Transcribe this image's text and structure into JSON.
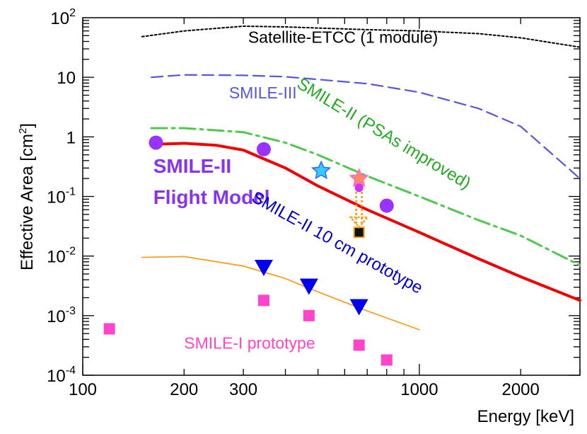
{
  "chart_data": {
    "type": "line",
    "title": "",
    "xlabel": "Energy [keV]",
    "ylabel_prefix": "Effective Area [cm",
    "ylabel_sup": "2",
    "ylabel_suffix": "]",
    "x_scale": "log",
    "y_scale": "log",
    "xlim": [
      100,
      3000
    ],
    "ylim": [
      0.0001,
      100
    ],
    "x_tick_labels": [
      {
        "value": 100,
        "label": "100"
      },
      {
        "value": 200,
        "label": "200"
      },
      {
        "value": 300,
        "label": "300"
      },
      {
        "value": 1000,
        "label": "1000"
      },
      {
        "value": 2000,
        "label": "2000"
      }
    ],
    "y_tick_labels": [
      {
        "value": 100,
        "base": "10",
        "sup": "2"
      },
      {
        "value": 10,
        "base": "10",
        "sup": ""
      },
      {
        "value": 1,
        "base": "1",
        "sup": ""
      },
      {
        "value": 0.1,
        "base": "10",
        "sup": "-1"
      },
      {
        "value": 0.01,
        "base": "10",
        "sup": "-2"
      },
      {
        "value": 0.001,
        "base": "10",
        "sup": "-3"
      },
      {
        "value": 0.0001,
        "base": "10",
        "sup": "-4"
      }
    ],
    "series": [
      {
        "name": "Satellite-ETCC (1 module)",
        "style": "dotted",
        "color": "#000000",
        "x": [
          150,
          200,
          300,
          400,
          500,
          700,
          1000,
          1500,
          2000,
          3000
        ],
        "y": [
          48,
          60,
          72,
          70,
          67,
          63,
          60,
          54,
          46,
          32
        ]
      },
      {
        "name": "SMILE-III",
        "style": "dashed",
        "color": "#5555dd",
        "x": [
          160,
          200,
          300,
          400,
          500,
          700,
          1000,
          1500,
          2000,
          3000
        ],
        "y": [
          10,
          11,
          10.8,
          10.2,
          9.2,
          7.8,
          5.6,
          3.0,
          1.5,
          0.2
        ]
      },
      {
        "name": "SMILE-II (PSAs improved)",
        "style": "dashdot",
        "color": "#4dc94d",
        "x": [
          160,
          200,
          300,
          400,
          500,
          700,
          1000,
          1500,
          2000,
          3000
        ],
        "y": [
          1.4,
          1.4,
          1.2,
          0.8,
          0.5,
          0.22,
          0.1,
          0.04,
          0.022,
          0.007
        ]
      },
      {
        "name": "SMILE-II Flight Model",
        "style": "solid",
        "color": "#ee0000",
        "x": [
          165,
          200,
          250,
          300,
          400,
          500,
          700,
          1000,
          1500,
          2000,
          3000
        ],
        "y": [
          0.75,
          0.78,
          0.72,
          0.6,
          0.3,
          0.15,
          0.06,
          0.025,
          0.009,
          0.0045,
          0.0018
        ]
      },
      {
        "name": "SMILE-II 10 cm prototype (curve)",
        "style": "solid-thin",
        "color": "#f4a020",
        "x": [
          150,
          200,
          300,
          400,
          500,
          700,
          1000
        ],
        "y": [
          0.0095,
          0.0098,
          0.0068,
          0.0042,
          0.0025,
          0.0012,
          0.00058
        ]
      }
    ],
    "points": [
      {
        "name": "SMILE-II Flight Model",
        "marker": "circle",
        "color": "#9933ff",
        "x": [
          165,
          345,
          800
        ],
        "y": [
          0.8,
          0.62,
          0.07
        ]
      },
      {
        "name": "SMILE-II 10 cm prototype",
        "marker": "triangle-down",
        "color": "#0000ee",
        "x": [
          345,
          470,
          662
        ],
        "y": [
          0.0064,
          0.0031,
          0.0014
        ]
      },
      {
        "name": "SMILE-I prototype",
        "marker": "square",
        "color": "#ff44cc",
        "x": [
          120,
          345,
          470,
          662,
          800
        ],
        "y": [
          0.0006,
          0.0018,
          0.001,
          0.00032,
          0.00018
        ]
      },
      {
        "name": "cyan star",
        "marker": "star",
        "color": "#33ccff",
        "x": [
          511
        ],
        "y": [
          0.27
        ]
      },
      {
        "name": "pink star",
        "marker": "star",
        "color": "#ff8866",
        "x": [
          662
        ],
        "y": [
          0.2
        ]
      },
      {
        "name": "small purple point",
        "marker": "circle-small",
        "color": "#cc33ff",
        "x": [
          662
        ],
        "y": [
          0.14
        ]
      },
      {
        "name": "black square",
        "marker": "square-black",
        "color": "#111111",
        "x": [
          662
        ],
        "y": [
          0.025
        ]
      }
    ],
    "annotations": [
      {
        "text": "Satellite-ETCC (1 module)",
        "x": 310,
        "y": 38,
        "color": "#000000",
        "size": 23,
        "weight": "normal",
        "rotate": 0
      },
      {
        "text": "SMILE-III",
        "x": 272,
        "y": 4.4,
        "color": "#5555dd",
        "size": 23,
        "weight": "normal",
        "rotate": 0
      },
      {
        "text": "SMILE-II (PSAs improved)",
        "x": 770,
        "y": 0.95,
        "color": "#22aa22",
        "size": 24,
        "weight": "normal",
        "rotate": 31
      },
      {
        "text": "SMILE-II",
        "x": 162,
        "y": 0.25,
        "color": "#8833ee",
        "size": 28,
        "weight": "bold",
        "rotate": 0
      },
      {
        "text": "Flight Model",
        "x": 162,
        "y": 0.075,
        "color": "#8833ee",
        "size": 28,
        "weight": "bold",
        "rotate": 0
      },
      {
        "text": "SMILE-II 10 cm prototype",
        "x": 560,
        "y": 0.014,
        "color": "#0000cc",
        "size": 24,
        "weight": "normal",
        "rotate": 29
      },
      {
        "text": "SMILE-I  prototype",
        "x": 200,
        "y": 0.00028,
        "color": "#ff44cc",
        "size": 23,
        "weight": "normal",
        "rotate": 0
      }
    ],
    "grid": false,
    "legend": "none"
  }
}
